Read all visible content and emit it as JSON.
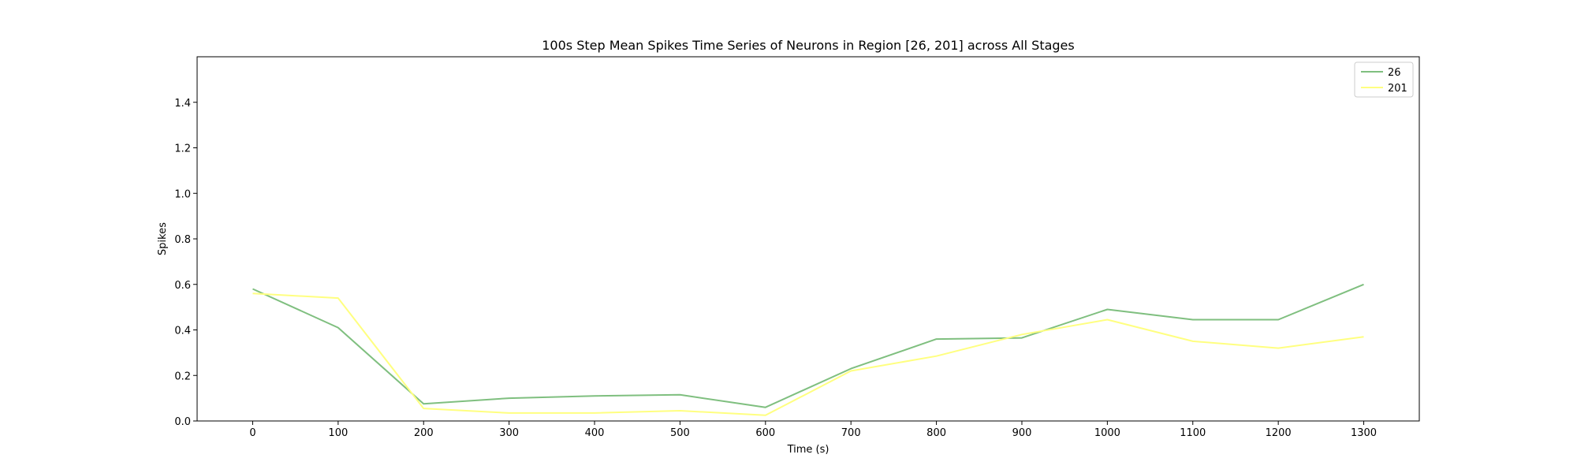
{
  "chart_data": {
    "type": "line",
    "title": "100s Step Mean Spikes Time Series of Neurons in Region [26, 201] across All Stages",
    "xlabel": "Time (s)",
    "ylabel": "Spikes",
    "x": [
      0,
      100,
      200,
      300,
      400,
      500,
      600,
      700,
      800,
      900,
      1000,
      1100,
      1200,
      1300
    ],
    "xticks": [
      "0",
      "100",
      "200",
      "300",
      "400",
      "500",
      "600",
      "700",
      "800",
      "900",
      "1000",
      "1100",
      "1200",
      "1300"
    ],
    "yticks": [
      "0.0",
      "0.2",
      "0.4",
      "0.6",
      "0.8",
      "1.0",
      "1.2",
      "1.4"
    ],
    "xlim": [
      -65,
      1365
    ],
    "ylim": [
      0,
      1.6
    ],
    "grid": false,
    "legend_position": "top-right",
    "series": [
      {
        "name": "26",
        "color": "#7fbf7f",
        "values": [
          0.58,
          0.41,
          0.075,
          0.1,
          0.11,
          0.115,
          0.06,
          0.23,
          0.36,
          0.365,
          0.49,
          0.445,
          0.445,
          0.6
        ]
      },
      {
        "name": "201",
        "color": "#ffff80",
        "values": [
          0.56,
          0.54,
          0.055,
          0.035,
          0.035,
          0.045,
          0.025,
          0.22,
          0.285,
          0.38,
          0.445,
          0.35,
          0.32,
          0.37
        ]
      }
    ]
  }
}
